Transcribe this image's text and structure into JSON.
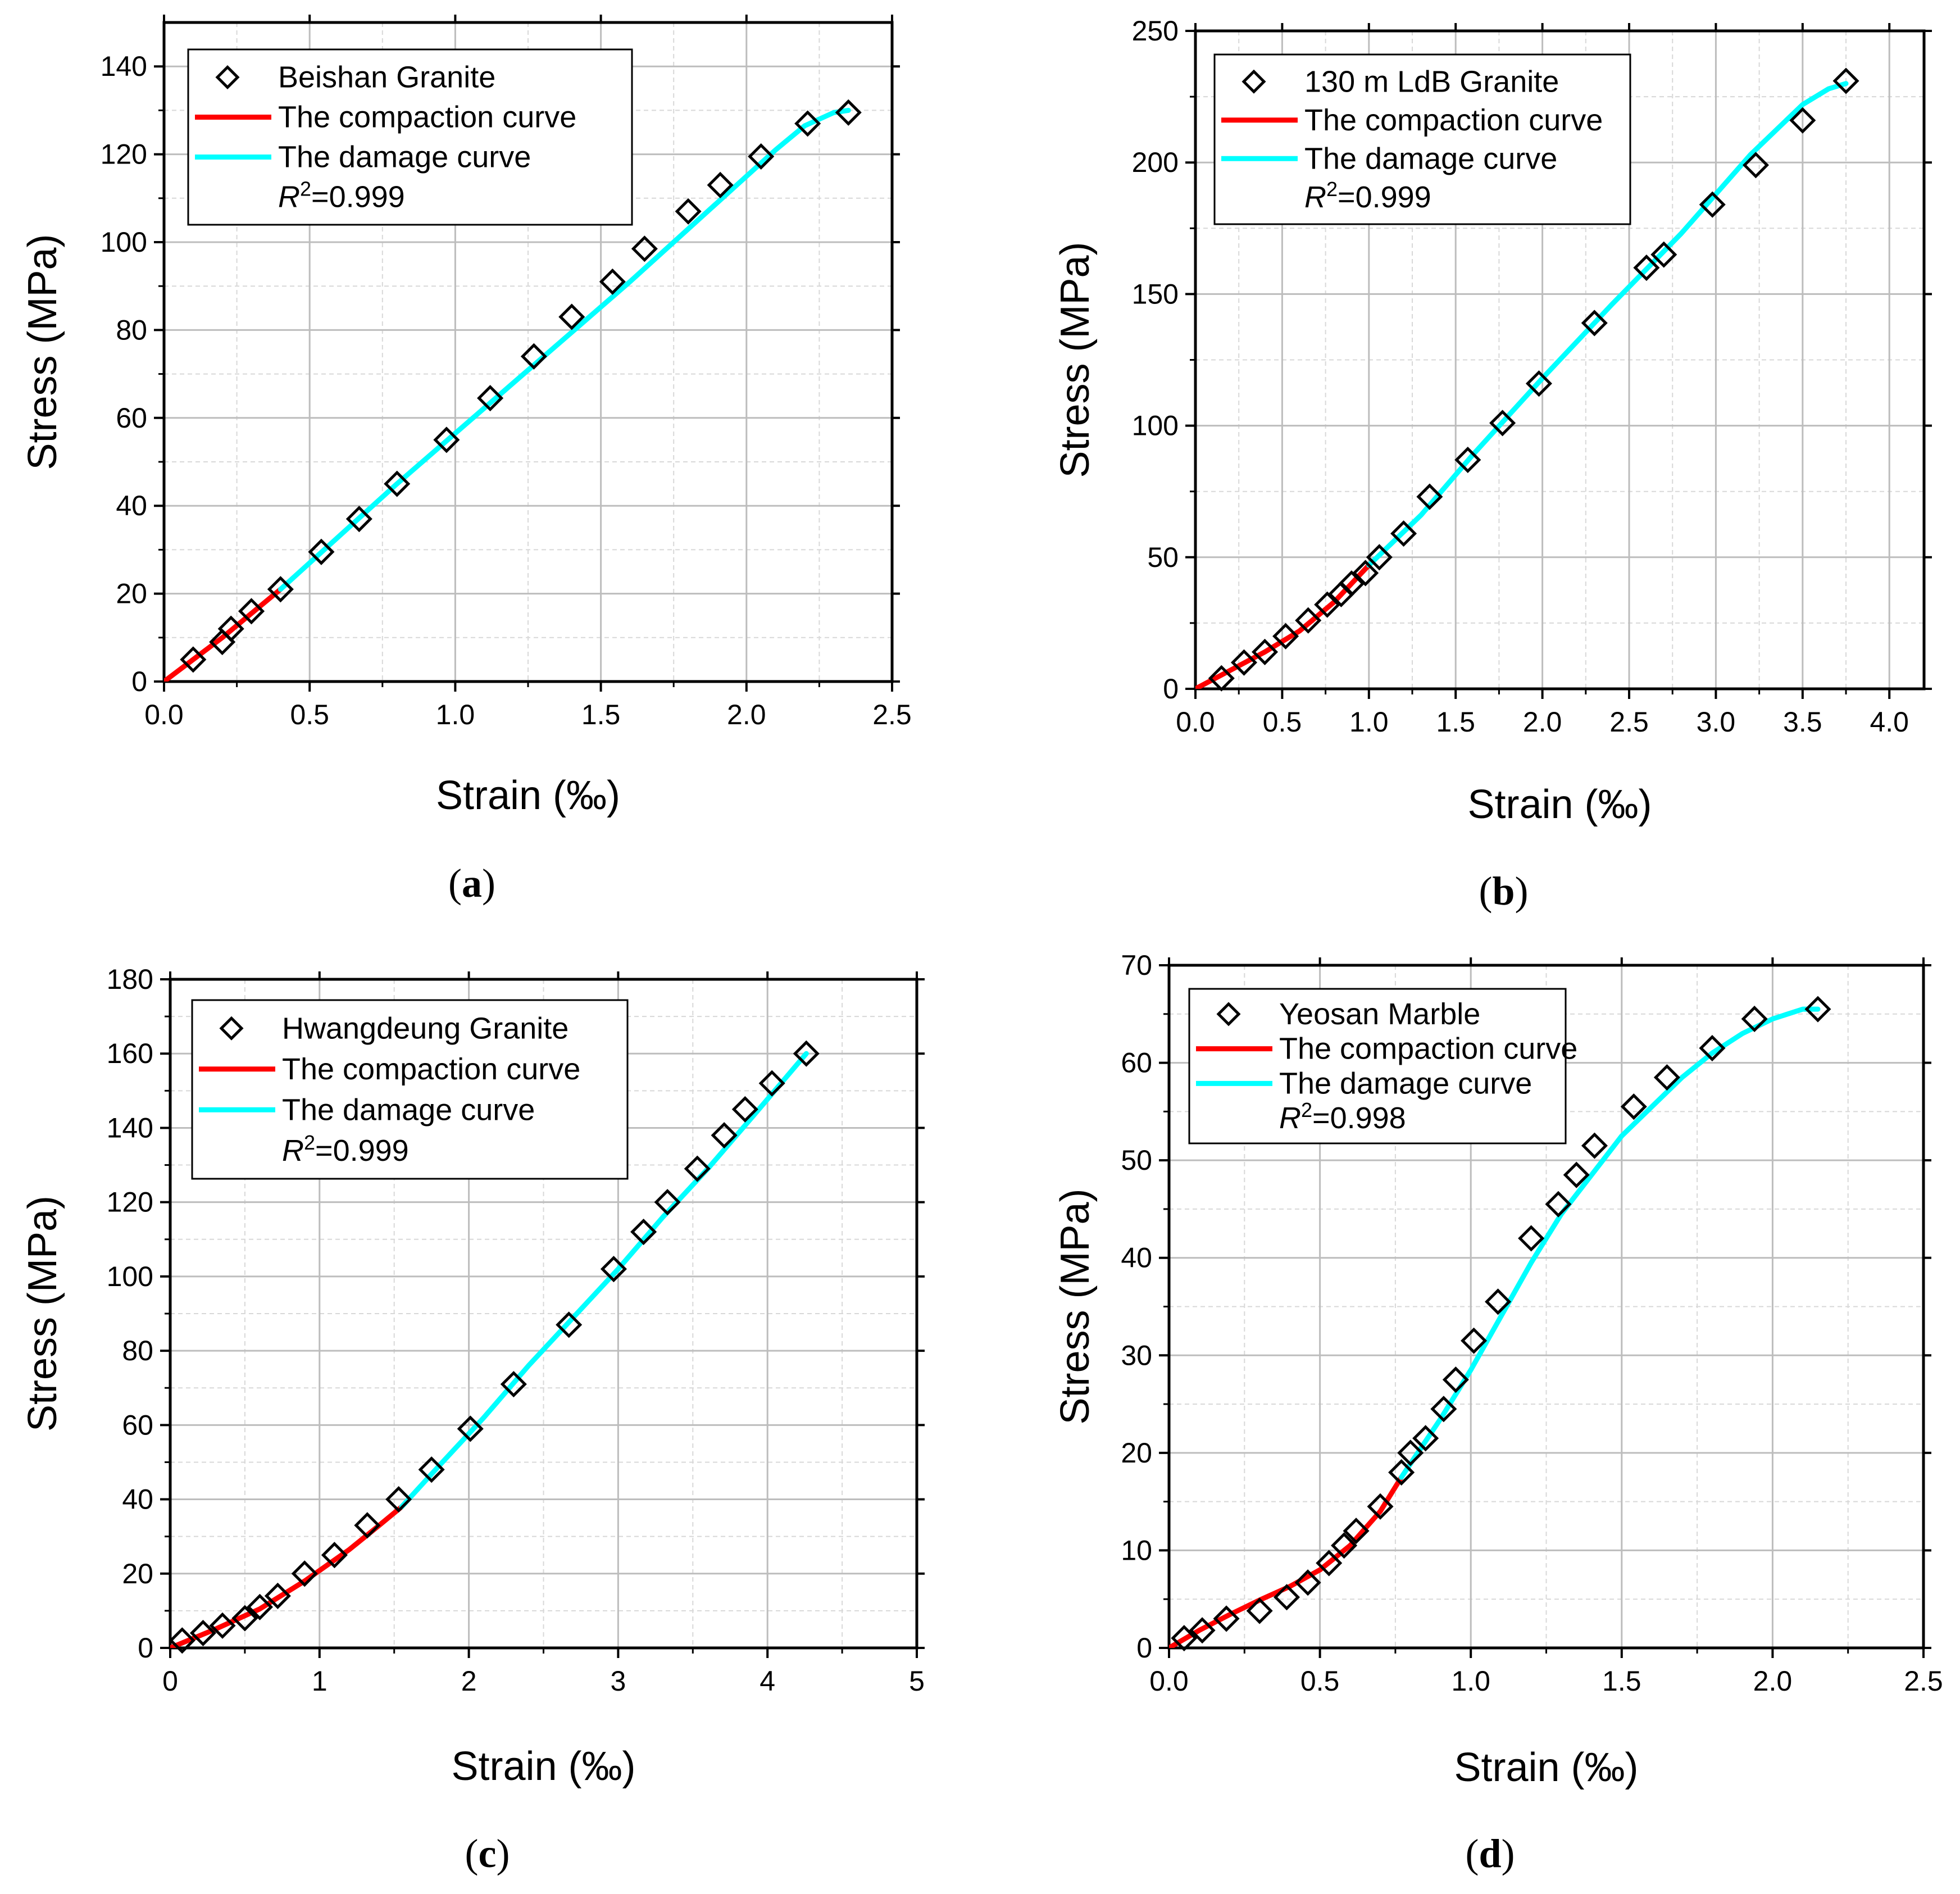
{
  "figure": {
    "y_axis_label": "Stress (MPa)",
    "x_axis_label": "Strain (‰)"
  },
  "colors": {
    "compaction": "#ff0000",
    "damage": "#00ffff",
    "marker": "#000000",
    "grid": "#bdbdbd"
  },
  "chart_data": [
    {
      "type": "scatter",
      "panel_label": "a",
      "title": "",
      "xlabel": "Strain (‰)",
      "ylabel": "Stress (MPa)",
      "xlim": [
        0,
        2.5
      ],
      "ylim": [
        0,
        150
      ],
      "xticks": [
        "0.0",
        "0.5",
        "1.0",
        "1.5",
        "2.0",
        "2.5"
      ],
      "yticks": [
        "0",
        "20",
        "40",
        "60",
        "80",
        "100",
        "120",
        "140"
      ],
      "legend": {
        "marker_label": "Beishan Granite",
        "compaction_label": "The compaction curve",
        "damage_label": "The damage curve",
        "r2_label": "R",
        "r2_sup": "2",
        "r2_value": "=0.999"
      },
      "series": [
        {
          "name": "Beishan Granite",
          "kind": "markers",
          "x": [
            0.1,
            0.2,
            0.23,
            0.3,
            0.4,
            0.54,
            0.67,
            0.8,
            0.97,
            1.12,
            1.27,
            1.4,
            1.54,
            1.65,
            1.8,
            1.91,
            2.05,
            2.21,
            2.35
          ],
          "y": [
            5,
            9,
            12,
            16,
            21,
            29.5,
            37,
            45,
            55,
            64.5,
            74,
            83,
            91,
            98.5,
            107,
            113,
            119.5,
            127,
            129.5
          ]
        },
        {
          "name": "The compaction curve",
          "kind": "line",
          "x": [
            0,
            0.1,
            0.2,
            0.3,
            0.4
          ],
          "y": [
            0,
            5,
            10,
            15.5,
            21
          ]
        },
        {
          "name": "The damage curve",
          "kind": "line",
          "x": [
            0.4,
            0.6,
            0.8,
            1.0,
            1.2,
            1.4,
            1.6,
            1.8,
            2.0,
            2.1,
            2.2,
            2.3,
            2.35
          ],
          "y": [
            21,
            33,
            45,
            56.5,
            68,
            79.5,
            91,
            103,
            115,
            121,
            126.5,
            129.5,
            130
          ]
        }
      ]
    },
    {
      "type": "scatter",
      "panel_label": "b",
      "title": "",
      "xlabel": "Strain (‰)",
      "ylabel": "Stress (MPa)",
      "xlim": [
        0,
        4.2
      ],
      "ylim": [
        0,
        250
      ],
      "xticks": [
        "0.0",
        "0.5",
        "1.0",
        "1.5",
        "2.0",
        "2.5",
        "3.0",
        "3.5",
        "4.0"
      ],
      "yticks": [
        "0",
        "50",
        "100",
        "150",
        "200",
        "250"
      ],
      "legend": {
        "marker_label": "130 m LdB Granite",
        "compaction_label": "The compaction curve",
        "damage_label": "The damage curve",
        "r2_label": "R",
        "r2_sup": "2",
        "r2_value": "=0.999"
      },
      "series": [
        {
          "name": "130 m LdB Granite",
          "kind": "markers",
          "x": [
            0.15,
            0.28,
            0.4,
            0.52,
            0.65,
            0.76,
            0.84,
            0.9,
            0.98,
            1.06,
            1.2,
            1.35,
            1.57,
            1.77,
            1.98,
            2.3,
            2.6,
            2.7,
            2.98,
            3.23,
            3.5,
            3.75
          ],
          "y": [
            4,
            10,
            14,
            20,
            26,
            32,
            36,
            40,
            44,
            50,
            59,
            73,
            87,
            101,
            116,
            139,
            160,
            165,
            184,
            199,
            216,
            231
          ]
        },
        {
          "name": "The compaction curve",
          "kind": "line",
          "x": [
            0,
            0.2,
            0.4,
            0.6,
            0.8,
            1.0
          ],
          "y": [
            0,
            7,
            14,
            22,
            33,
            47
          ]
        },
        {
          "name": "The damage curve",
          "kind": "line",
          "x": [
            1.0,
            1.3,
            1.6,
            2.0,
            2.4,
            2.8,
            3.2,
            3.5,
            3.65,
            3.75
          ],
          "y": [
            47,
            66,
            89,
            118,
            146,
            173,
            203,
            222,
            228,
            230
          ]
        }
      ]
    },
    {
      "type": "scatter",
      "panel_label": "c",
      "title": "",
      "xlabel": "Strain (‰)",
      "ylabel": "Stress (MPa)",
      "xlim": [
        0,
        5
      ],
      "ylim": [
        0,
        180
      ],
      "xticks": [
        "0",
        "1",
        "2",
        "3",
        "4",
        "5"
      ],
      "yticks": [
        "0",
        "20",
        "40",
        "60",
        "80",
        "100",
        "120",
        "140",
        "160",
        "180"
      ],
      "legend": {
        "marker_label": "Hwangdeung Granite",
        "compaction_label": "The compaction curve",
        "damage_label": "The damage curve",
        "r2_label": "R",
        "r2_sup": "2",
        "r2_value": "=0.999"
      },
      "series": [
        {
          "name": "Hwangdeung Granite",
          "kind": "markers",
          "x": [
            0.08,
            0.22,
            0.35,
            0.5,
            0.6,
            0.72,
            0.9,
            1.1,
            1.32,
            1.53,
            1.75,
            2.01,
            2.3,
            2.67,
            2.97,
            3.17,
            3.33,
            3.53,
            3.71,
            3.85,
            4.03,
            4.26
          ],
          "y": [
            2,
            4,
            6,
            8,
            11,
            14,
            20,
            25,
            33,
            40,
            48,
            59,
            71,
            87,
            102,
            112,
            120,
            129,
            138,
            145,
            152,
            160
          ]
        },
        {
          "name": "The compaction curve",
          "kind": "line",
          "x": [
            0,
            0.3,
            0.6,
            0.9,
            1.2,
            1.4,
            1.55
          ],
          "y": [
            0,
            5,
            10.5,
            18,
            26.5,
            33,
            38
          ]
        },
        {
          "name": "The damage curve",
          "kind": "line",
          "x": [
            1.55,
            1.8,
            2.1,
            2.4,
            2.7,
            3.0,
            3.3,
            3.6,
            3.9,
            4.26
          ],
          "y": [
            38,
            49,
            62,
            76,
            89,
            102,
            116,
            129,
            143,
            160
          ]
        }
      ]
    },
    {
      "type": "scatter",
      "panel_label": "d",
      "title": "",
      "xlabel": "Strain (‰)",
      "ylabel": "Stress (MPa)",
      "xlim": [
        0,
        2.5
      ],
      "ylim": [
        0,
        70
      ],
      "xticks": [
        "0.0",
        "0.5",
        "1.0",
        "1.5",
        "2.0",
        "2.5"
      ],
      "yticks": [
        "0",
        "10",
        "20",
        "30",
        "40",
        "50",
        "60",
        "70"
      ],
      "legend": {
        "marker_label": "Yeosan Marble",
        "compaction_label": "The compaction curve",
        "damage_label": "The damage curve",
        "r2_label": "R",
        "r2_sup": "2",
        "r2_value": "=0.998"
      },
      "series": [
        {
          "name": "Yeosan Marble",
          "kind": "markers",
          "x": [
            0.05,
            0.11,
            0.19,
            0.3,
            0.39,
            0.46,
            0.53,
            0.58,
            0.62,
            0.7,
            0.77,
            0.8,
            0.85,
            0.91,
            0.95,
            1.01,
            1.09,
            1.2,
            1.29,
            1.35,
            1.41,
            1.54,
            1.65,
            1.8,
            1.94,
            2.15
          ],
          "y": [
            1,
            1.8,
            3,
            3.8,
            5.2,
            6.7,
            8.7,
            10.5,
            12,
            14.5,
            18,
            20,
            21.5,
            24.5,
            27.5,
            31.5,
            35.5,
            42,
            45.5,
            48.5,
            51.5,
            55.5,
            58.5,
            61.5,
            64.5,
            65.5
          ]
        },
        {
          "name": "The compaction curve",
          "kind": "line",
          "x": [
            0,
            0.1,
            0.2,
            0.3,
            0.4,
            0.5,
            0.6,
            0.7,
            0.77
          ],
          "y": [
            0,
            1.8,
            3.4,
            4.9,
            6.3,
            8.0,
            10.5,
            14.0,
            17.5
          ]
        },
        {
          "name": "The damage curve",
          "kind": "line",
          "x": [
            0.77,
            0.9,
            1.0,
            1.1,
            1.2,
            1.3,
            1.4,
            1.5,
            1.6,
            1.7,
            1.8,
            1.9,
            2.0,
            2.1,
            2.15
          ],
          "y": [
            17.5,
            23.5,
            28.5,
            34,
            39.5,
            44.5,
            48.5,
            52.5,
            55.5,
            58.5,
            61,
            63,
            64.5,
            65.5,
            65.5
          ]
        }
      ]
    }
  ]
}
